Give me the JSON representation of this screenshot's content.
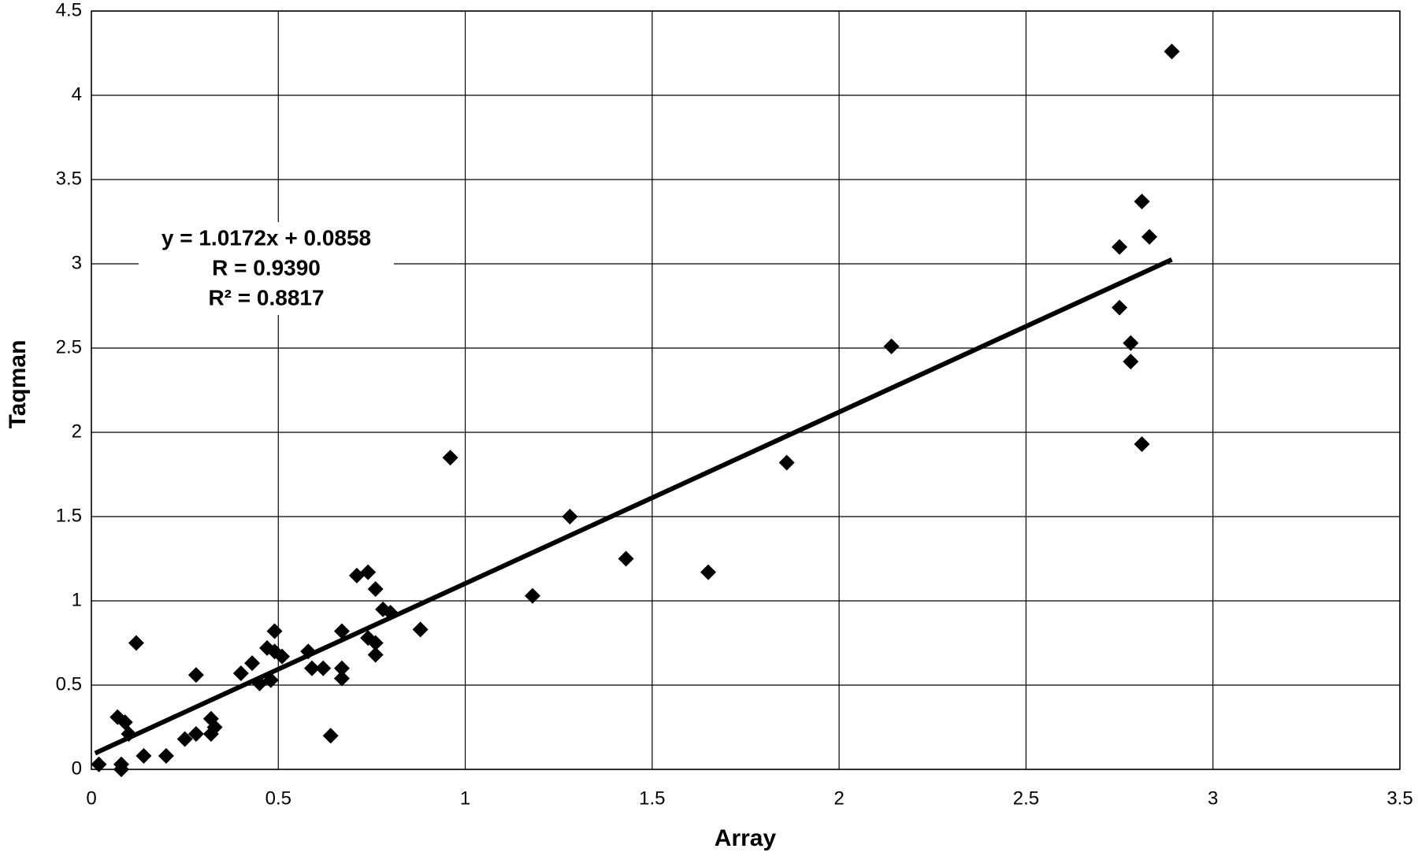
{
  "chart_data": {
    "type": "scatter",
    "xlabel": "Array",
    "ylabel": "Taqman",
    "xlim": [
      0,
      3.5
    ],
    "xticks": [
      0,
      0.5,
      1,
      1.5,
      2,
      2.5,
      3,
      3.5
    ],
    "ylim": [
      0,
      4.5
    ],
    "yticks": [
      0,
      0.5,
      1,
      1.5,
      2,
      2.5,
      3,
      3.5,
      4,
      4.5
    ],
    "grid": true,
    "color": "#000000",
    "x": [
      0.02,
      0.08,
      0.08,
      0.07,
      0.09,
      0.1,
      0.12,
      0.14,
      0.2,
      0.25,
      0.28,
      0.28,
      0.32,
      0.32,
      0.33,
      0.4,
      0.43,
      0.45,
      0.47,
      0.49,
      0.49,
      0.48,
      0.51,
      0.58,
      0.59,
      0.62,
      0.64,
      0.67,
      0.67,
      0.67,
      0.71,
      0.74,
      0.74,
      0.76,
      0.76,
      0.76,
      0.78,
      0.8,
      0.88,
      0.96,
      1.18,
      1.28,
      1.43,
      1.65,
      1.86,
      2.14,
      2.75,
      2.75,
      2.78,
      2.78,
      2.81,
      2.81,
      2.83,
      2.89
    ],
    "y": [
      0.03,
      0.03,
      0.0,
      0.31,
      0.28,
      0.21,
      0.75,
      0.08,
      0.08,
      0.18,
      0.56,
      0.21,
      0.21,
      0.3,
      0.25,
      0.57,
      0.63,
      0.51,
      0.72,
      0.7,
      0.82,
      0.53,
      0.67,
      0.7,
      0.6,
      0.6,
      0.2,
      0.82,
      0.6,
      0.54,
      1.15,
      1.17,
      0.78,
      1.07,
      0.75,
      0.68,
      0.95,
      0.93,
      0.83,
      1.85,
      1.03,
      1.5,
      1.25,
      1.17,
      1.82,
      2.51,
      2.74,
      3.1,
      2.53,
      2.42,
      1.93,
      3.37,
      3.16,
      4.26
    ],
    "trendline": {
      "slope": 1.0172,
      "intercept": 0.0858,
      "x_start": 0.01,
      "x_end": 2.89
    },
    "annotation": [
      "y = 1.0172x + 0.0858",
      "R = 0.9390",
      "R² = 0.8817"
    ]
  }
}
